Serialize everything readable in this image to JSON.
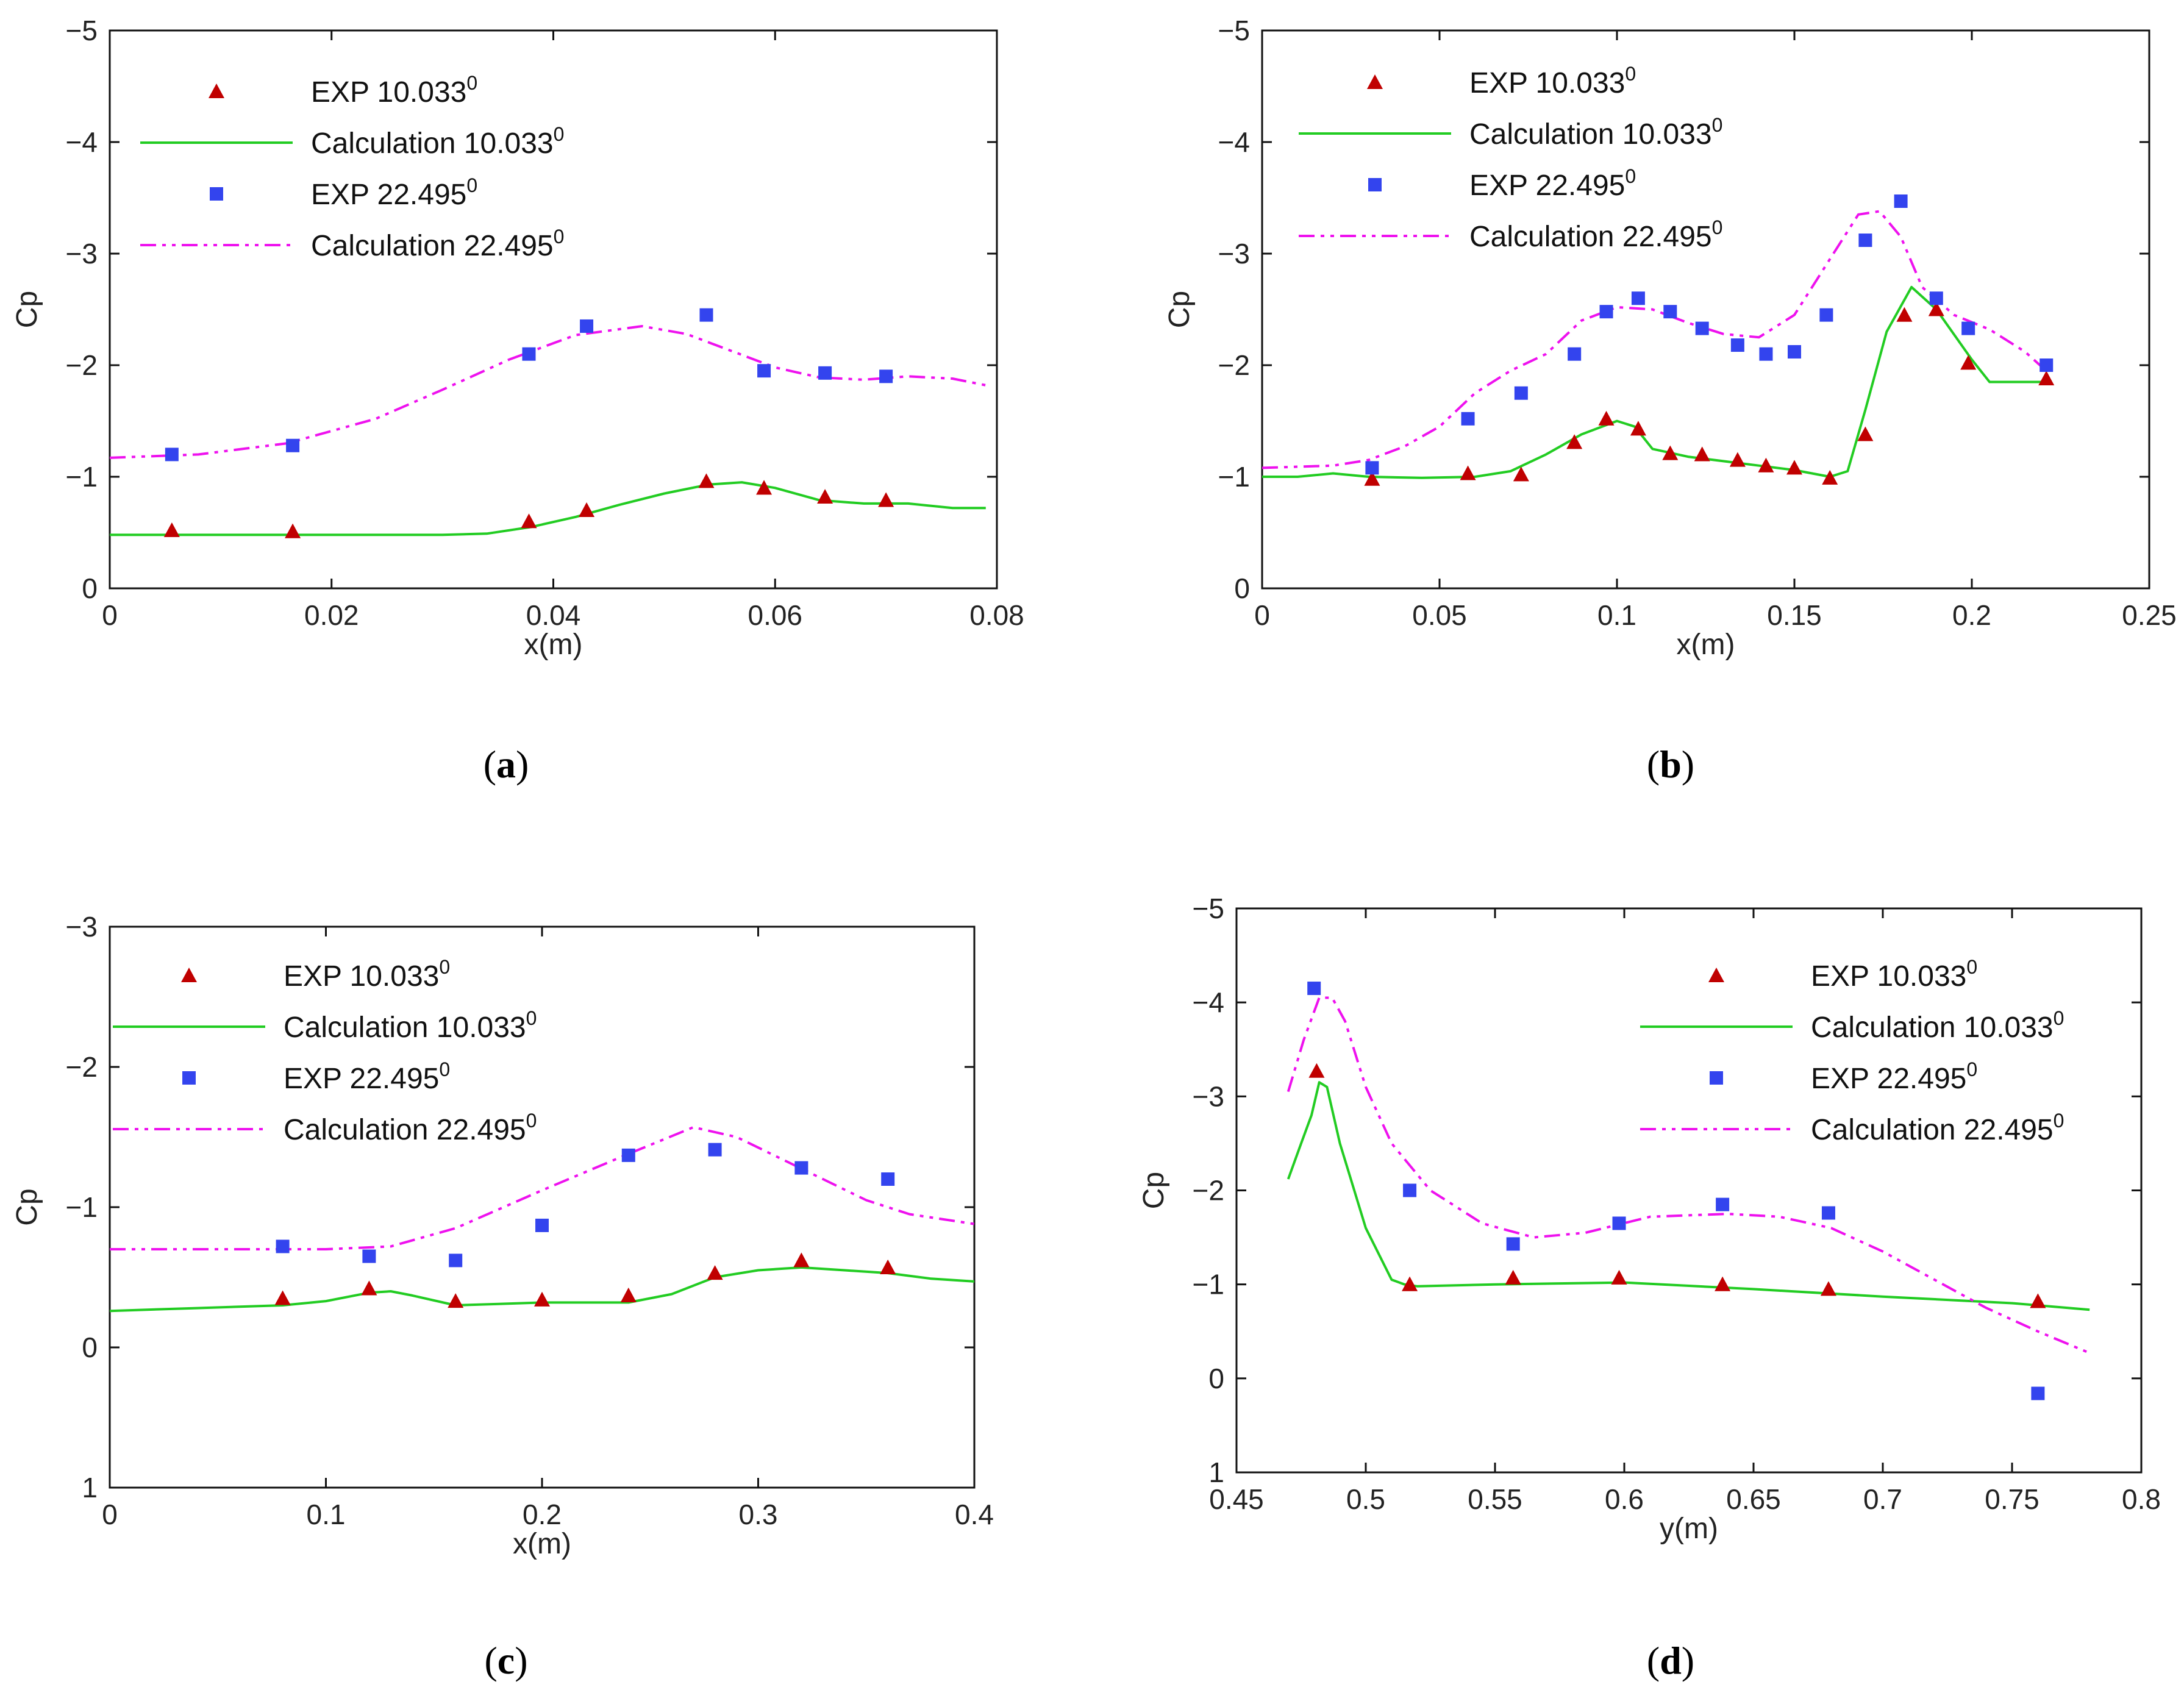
{
  "colors": {
    "exp10": "#c00000",
    "calc10": "#22cc22",
    "exp22": "#3344ee",
    "calc22": "#ee11ee",
    "axis": "#111111"
  },
  "legend_degree_mark": "0",
  "chart_data": [
    {
      "id": "a",
      "type": "line",
      "caption_letter": "a",
      "caption_open": "(",
      "caption_close": ")",
      "xlabel": "x(m)",
      "ylabel": "Cp",
      "xlim": [
        0,
        0.08
      ],
      "ylim": [
        0,
        -5
      ],
      "xticks": [
        0,
        0.02,
        0.04,
        0.06,
        0.08
      ],
      "xtick_labels": [
        "0",
        "0.02",
        "0.04",
        "0.06",
        "0.08"
      ],
      "yticks": [
        0,
        -1,
        -2,
        -3,
        -4,
        -5
      ],
      "ytick_labels": [
        "0",
        "−1",
        "−2",
        "−3",
        "−4",
        "−5"
      ],
      "legend_position": "top-left",
      "legend": [
        "EXP 10.033",
        "Calculation 10.033",
        "EXP 22.495",
        "Calculation 22.495"
      ],
      "series": [
        {
          "name": "EXP 10.033",
          "kind": "triangle",
          "x": [
            0.0056,
            0.0165,
            0.0378,
            0.043,
            0.0538,
            0.059,
            0.0645,
            0.07
          ],
          "y": [
            -0.52,
            -0.51,
            -0.6,
            -0.7,
            -0.96,
            -0.9,
            -0.82,
            -0.79
          ]
        },
        {
          "name": "Calculation 10.033",
          "kind": "solid",
          "x": [
            0,
            0.01,
            0.02,
            0.03,
            0.034,
            0.038,
            0.042,
            0.046,
            0.05,
            0.054,
            0.057,
            0.06,
            0.064,
            0.068,
            0.072,
            0.076,
            0.079
          ],
          "y": [
            -0.48,
            -0.48,
            -0.48,
            -0.48,
            -0.49,
            -0.55,
            -0.64,
            -0.75,
            -0.85,
            -0.93,
            -0.95,
            -0.9,
            -0.79,
            -0.76,
            -0.76,
            -0.72,
            -0.72
          ]
        },
        {
          "name": "EXP 22.495",
          "kind": "square",
          "x": [
            0.0056,
            0.0165,
            0.0378,
            0.043,
            0.0538,
            0.059,
            0.0645,
            0.07
          ],
          "y": [
            -1.2,
            -1.28,
            -2.1,
            -2.35,
            -2.45,
            -1.95,
            -1.93,
            -1.9
          ]
        },
        {
          "name": "Calculation 22.495",
          "kind": "dashdot",
          "x": [
            0,
            0.008,
            0.016,
            0.024,
            0.03,
            0.036,
            0.042,
            0.048,
            0.052,
            0.056,
            0.06,
            0.064,
            0.068,
            0.072,
            0.076,
            0.079
          ],
          "y": [
            -1.17,
            -1.2,
            -1.3,
            -1.52,
            -1.78,
            -2.05,
            -2.27,
            -2.35,
            -2.28,
            -2.13,
            -1.98,
            -1.89,
            -1.87,
            -1.9,
            -1.88,
            -1.82
          ]
        }
      ]
    },
    {
      "id": "b",
      "type": "line",
      "caption_letter": "b",
      "caption_open": "(",
      "caption_close": ")",
      "xlabel": "x(m)",
      "ylabel": "Cp",
      "xlim": [
        0,
        0.25
      ],
      "ylim": [
        0,
        -5
      ],
      "xticks": [
        0,
        0.05,
        0.1,
        0.15,
        0.2,
        0.25
      ],
      "xtick_labels": [
        "0",
        "0.05",
        "0.1",
        "0.15",
        "0.2",
        "0.25"
      ],
      "yticks": [
        0,
        -1,
        -2,
        -3,
        -4,
        -5
      ],
      "ytick_labels": [
        "0",
        "−1",
        "−2",
        "−3",
        "−4",
        "−5"
      ],
      "legend_position": "top-right",
      "legend": [
        "EXP 10.033",
        "Calculation 10.033",
        "EXP 22.495",
        "Calculation 22.495"
      ],
      "series": [
        {
          "name": "EXP 10.033",
          "kind": "triangle",
          "x": [
            0.031,
            0.058,
            0.073,
            0.088,
            0.097,
            0.106,
            0.115,
            0.124,
            0.134,
            0.142,
            0.15,
            0.16,
            0.17,
            0.181,
            0.19,
            0.199,
            0.221
          ],
          "y": [
            -0.98,
            -1.03,
            -1.02,
            -1.31,
            -1.52,
            -1.43,
            -1.21,
            -1.2,
            -1.15,
            -1.1,
            -1.08,
            -0.99,
            -1.38,
            -2.45,
            -2.5,
            -2.02,
            -1.88
          ]
        },
        {
          "name": "Calculation 10.033",
          "kind": "solid",
          "x": [
            0,
            0.01,
            0.02,
            0.03,
            0.045,
            0.06,
            0.07,
            0.08,
            0.09,
            0.1,
            0.105,
            0.11,
            0.12,
            0.13,
            0.14,
            0.15,
            0.16,
            0.165,
            0.17,
            0.176,
            0.183,
            0.19,
            0.2,
            0.205,
            0.222
          ],
          "y": [
            -1.0,
            -1.0,
            -1.03,
            -1.0,
            -0.99,
            -1.0,
            -1.05,
            -1.2,
            -1.38,
            -1.5,
            -1.45,
            -1.25,
            -1.18,
            -1.14,
            -1.1,
            -1.06,
            -1.0,
            -1.05,
            -1.6,
            -2.3,
            -2.7,
            -2.5,
            -2.05,
            -1.85,
            -1.85
          ]
        },
        {
          "name": "EXP 22.495",
          "kind": "square",
          "x": [
            0.031,
            0.058,
            0.073,
            0.088,
            0.097,
            0.106,
            0.115,
            0.124,
            0.134,
            0.142,
            0.15,
            0.159,
            0.17,
            0.18,
            0.19,
            0.199,
            0.221
          ],
          "y": [
            -1.08,
            -1.52,
            -1.75,
            -2.1,
            -2.48,
            -2.6,
            -2.48,
            -2.33,
            -2.18,
            -2.1,
            -2.12,
            -2.45,
            -3.12,
            -3.47,
            -2.6,
            -2.33,
            -2.0
          ]
        },
        {
          "name": "Calculation 22.495",
          "kind": "dashdot",
          "x": [
            0,
            0.02,
            0.03,
            0.04,
            0.05,
            0.06,
            0.07,
            0.08,
            0.09,
            0.1,
            0.11,
            0.12,
            0.13,
            0.14,
            0.15,
            0.16,
            0.168,
            0.174,
            0.18,
            0.186,
            0.195,
            0.205,
            0.215,
            0.222
          ],
          "y": [
            -1.08,
            -1.1,
            -1.15,
            -1.27,
            -1.45,
            -1.75,
            -1.95,
            -2.1,
            -2.4,
            -2.52,
            -2.5,
            -2.38,
            -2.28,
            -2.25,
            -2.45,
            -2.95,
            -3.35,
            -3.38,
            -3.15,
            -2.7,
            -2.45,
            -2.32,
            -2.12,
            -1.92
          ]
        }
      ]
    },
    {
      "id": "c",
      "type": "line",
      "caption_letter": "c",
      "caption_open": "(",
      "caption_close": ")",
      "xlabel": "x(m)",
      "ylabel": "Cp",
      "xlim": [
        0,
        0.4
      ],
      "ylim": [
        1,
        -3
      ],
      "xticks": [
        0,
        0.1,
        0.2,
        0.3,
        0.4
      ],
      "xtick_labels": [
        "0",
        "0.1",
        "0.2",
        "0.3",
        "0.4"
      ],
      "yticks": [
        1,
        0,
        -1,
        -2,
        -3
      ],
      "ytick_labels": [
        "1",
        "0",
        "−1",
        "−2",
        "−3"
      ],
      "legend_position": "top-left",
      "legend": [
        "EXP 10.033",
        "Calculation 10.033",
        "EXP 22.495",
        "Calculation 22.495"
      ],
      "series": [
        {
          "name": "EXP 10.033",
          "kind": "triangle",
          "x": [
            0.08,
            0.12,
            0.16,
            0.2,
            0.24,
            0.28,
            0.32,
            0.36
          ],
          "y": [
            -0.35,
            -0.42,
            -0.33,
            -0.34,
            -0.37,
            -0.53,
            -0.62,
            -0.57
          ]
        },
        {
          "name": "Calculation 10.033",
          "kind": "solid",
          "x": [
            0,
            0.04,
            0.08,
            0.1,
            0.12,
            0.13,
            0.14,
            0.16,
            0.18,
            0.2,
            0.24,
            0.26,
            0.28,
            0.3,
            0.32,
            0.34,
            0.36,
            0.38,
            0.4
          ],
          "y": [
            -0.26,
            -0.28,
            -0.3,
            -0.33,
            -0.39,
            -0.4,
            -0.37,
            -0.3,
            -0.31,
            -0.32,
            -0.32,
            -0.38,
            -0.5,
            -0.55,
            -0.57,
            -0.55,
            -0.53,
            -0.49,
            -0.47
          ]
        },
        {
          "name": "EXP 22.495",
          "kind": "square",
          "x": [
            0.08,
            0.12,
            0.16,
            0.2,
            0.24,
            0.28,
            0.32,
            0.36
          ],
          "y": [
            -0.72,
            -0.65,
            -0.62,
            -0.87,
            -1.37,
            -1.41,
            -1.28,
            -1.2
          ]
        },
        {
          "name": "Calculation 22.495",
          "kind": "dashdot",
          "x": [
            0,
            0.05,
            0.1,
            0.13,
            0.16,
            0.2,
            0.24,
            0.27,
            0.29,
            0.31,
            0.33,
            0.35,
            0.37,
            0.4
          ],
          "y": [
            -0.7,
            -0.7,
            -0.7,
            -0.72,
            -0.85,
            -1.12,
            -1.38,
            -1.57,
            -1.5,
            -1.35,
            -1.2,
            -1.05,
            -0.95,
            -0.88
          ]
        }
      ]
    },
    {
      "id": "d",
      "type": "line",
      "caption_letter": "d",
      "caption_open": "(",
      "caption_close": ")",
      "xlabel": "y(m)",
      "ylabel": "Cp",
      "xlim": [
        0.45,
        0.8
      ],
      "ylim": [
        1,
        -5
      ],
      "xticks": [
        0.45,
        0.5,
        0.55,
        0.6,
        0.65,
        0.7,
        0.75,
        0.8
      ],
      "xtick_labels": [
        "0.45",
        "0.5",
        "0.55",
        "0.6",
        "0.65",
        "0.7",
        "0.75",
        "0.8"
      ],
      "yticks": [
        1,
        0,
        -1,
        -2,
        -3,
        -4,
        -5
      ],
      "ytick_labels": [
        "1",
        "0",
        "−1",
        "−2",
        "−3",
        "−4",
        "−5"
      ],
      "legend_position": "top-right",
      "legend": [
        "EXP 10.033",
        "Calculation 10.033",
        "EXP 22.495",
        "Calculation 22.495"
      ],
      "series": [
        {
          "name": "EXP 10.033",
          "kind": "triangle",
          "x": [
            0.481,
            0.517,
            0.557,
            0.598,
            0.638,
            0.679,
            0.76
          ],
          "y": [
            -3.27,
            -1.0,
            -1.07,
            -1.07,
            -1.0,
            -0.95,
            -0.82
          ]
        },
        {
          "name": "Calculation 10.033",
          "kind": "solid",
          "x": [
            0.47,
            0.475,
            0.479,
            0.482,
            0.485,
            0.49,
            0.5,
            0.51,
            0.515,
            0.52,
            0.55,
            0.6,
            0.65,
            0.7,
            0.75,
            0.78
          ],
          "y": [
            -2.12,
            -2.5,
            -2.8,
            -3.15,
            -3.1,
            -2.5,
            -1.6,
            -1.05,
            -1.0,
            -0.98,
            -1.0,
            -1.02,
            -0.95,
            -0.87,
            -0.8,
            -0.73
          ]
        },
        {
          "name": "EXP 22.495",
          "kind": "square",
          "x": [
            0.48,
            0.517,
            0.557,
            0.598,
            0.638,
            0.679,
            0.76
          ],
          "y": [
            -4.15,
            -2.0,
            -1.43,
            -1.65,
            -1.85,
            -1.76,
            0.16
          ]
        },
        {
          "name": "Calculation 22.495",
          "kind": "dashdot",
          "x": [
            0.47,
            0.476,
            0.482,
            0.487,
            0.492,
            0.5,
            0.51,
            0.525,
            0.545,
            0.565,
            0.585,
            0.61,
            0.64,
            0.66,
            0.68,
            0.7,
            0.72,
            0.74,
            0.76,
            0.78
          ],
          "y": [
            -3.05,
            -3.6,
            -4.05,
            -4.05,
            -3.8,
            -3.1,
            -2.5,
            -2.0,
            -1.65,
            -1.5,
            -1.55,
            -1.72,
            -1.75,
            -1.72,
            -1.6,
            -1.35,
            -1.05,
            -0.75,
            -0.5,
            -0.27
          ]
        }
      ]
    }
  ]
}
